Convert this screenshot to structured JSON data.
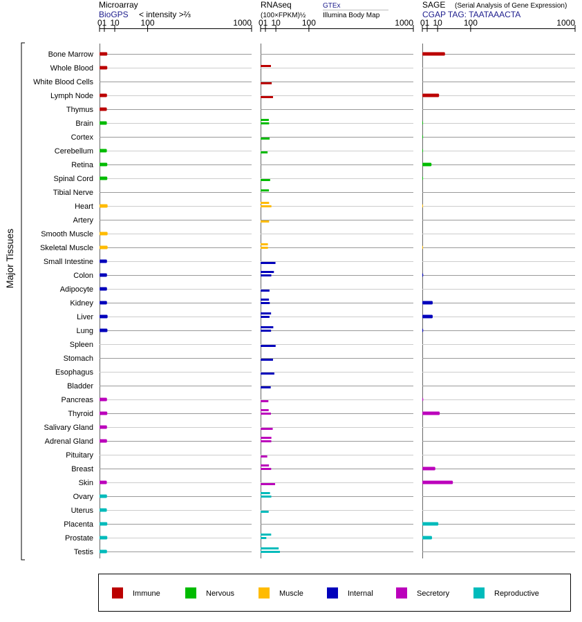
{
  "panels": {
    "microarray": {
      "title": "Microarray",
      "source": "BioGPS",
      "unit": "< intensity >⅔"
    },
    "rnaseq": {
      "title": "RNAseq",
      "unit": "(100×FPKM)½",
      "source_a": "GTEx",
      "source_b": "Illumina Body Map"
    },
    "sage": {
      "title": "SAGE",
      "subtitle": "(Serial Analysis of Gene Expression)",
      "source": "CGAP TAG: TAATAAACTA"
    }
  },
  "colors": {
    "immune": "#bb0000",
    "nervous": "#00bb00",
    "muscle": "#ffbb00",
    "internal": "#0000bb",
    "secretory": "#bb00bb",
    "reproductive": "#00bbbb"
  },
  "chart_data": {
    "type": "bar",
    "ylabel": "Major Tissues",
    "x_ticks": [
      "0",
      "1",
      "10",
      "100",
      "1000"
    ],
    "x_scale": "power 1/2",
    "xlim": [
      0,
      1000
    ],
    "categories": [
      "Bone Marrow",
      "Whole Blood",
      "White Blood Cells",
      "Lymph Node",
      "Thymus",
      "Brain",
      "Cortex",
      "Cerebellum",
      "Retina",
      "Spinal Cord",
      "Tibial Nerve",
      "Heart",
      "Artery",
      "Smooth Muscle",
      "Skeletal Muscle",
      "Small Intestine",
      "Colon",
      "Adipocyte",
      "Kidney",
      "Liver",
      "Lung",
      "Spleen",
      "Stomach",
      "Esophagus",
      "Bladder",
      "Pancreas",
      "Thyroid",
      "Salivary Gland",
      "Adrenal Gland",
      "Pituitary",
      "Breast",
      "Skin",
      "Ovary",
      "Uterus",
      "Placenta",
      "Prostate",
      "Testis"
    ],
    "groups": [
      "immune",
      "immune",
      "immune",
      "immune",
      "immune",
      "nervous",
      "nervous",
      "nervous",
      "nervous",
      "nervous",
      "nervous",
      "muscle",
      "muscle",
      "muscle",
      "muscle",
      "internal",
      "internal",
      "internal",
      "internal",
      "internal",
      "internal",
      "internal",
      "internal",
      "internal",
      "internal",
      "secretory",
      "secretory",
      "secretory",
      "secretory",
      "secretory",
      "secretory",
      "secretory",
      "reproductive",
      "reproductive",
      "reproductive",
      "reproductive",
      "reproductive"
    ],
    "microarray": [
      2.6,
      2.6,
      null,
      2.4,
      2.3,
      2.3,
      null,
      2.3,
      2.6,
      2.6,
      null,
      2.8,
      null,
      2.8,
      2.8,
      2.4,
      2.4,
      2.4,
      2.4,
      2.8,
      2.7,
      null,
      null,
      null,
      null,
      2.4,
      2.6,
      2.4,
      2.4,
      null,
      null,
      2.3,
      2.4,
      2.3,
      2.6,
      2.6,
      2.4
    ],
    "rnaseq_gtex": [
      null,
      4.6,
      null,
      null,
      null,
      2.9,
      null,
      null,
      null,
      null,
      3.0,
      3.1,
      null,
      null,
      2.3,
      null,
      7.6,
      null,
      3.0,
      4.7,
      6.9,
      null,
      null,
      null,
      null,
      null,
      2.8,
      null,
      5.0,
      null,
      3.0,
      null,
      3.8,
      null,
      null,
      4.8,
      14.0
    ],
    "rnaseq_ibm": [
      null,
      null,
      5.3,
      6.6,
      null,
      3.1,
      3.5,
      2.1,
      null,
      3.9,
      null,
      5.0,
      3.1,
      null,
      2.3,
      9.5,
      4.9,
      3.4,
      3.6,
      3.4,
      4.7,
      9.7,
      6.6,
      8.1,
      4.4,
      2.6,
      4.6,
      6.3,
      4.9,
      1.9,
      4.8,
      9.0,
      4.9,
      2.8,
      null,
      1.4,
      16.0
    ],
    "sage": [
      22,
      null,
      null,
      12,
      null,
      0.01,
      0.01,
      0.01,
      3.6,
      0.01,
      null,
      0.01,
      null,
      null,
      0.01,
      null,
      0.03,
      null,
      4.6,
      4.6,
      0.03,
      null,
      null,
      null,
      null,
      0.03,
      13,
      null,
      null,
      null,
      7.2,
      40,
      null,
      null,
      11,
      4.0,
      null
    ]
  },
  "legend": [
    {
      "key": "immune",
      "label": "Immune"
    },
    {
      "key": "nervous",
      "label": "Nervous"
    },
    {
      "key": "muscle",
      "label": "Muscle"
    },
    {
      "key": "internal",
      "label": "Internal"
    },
    {
      "key": "secretory",
      "label": "Secretory"
    },
    {
      "key": "reproductive",
      "label": "Reproductive"
    }
  ]
}
